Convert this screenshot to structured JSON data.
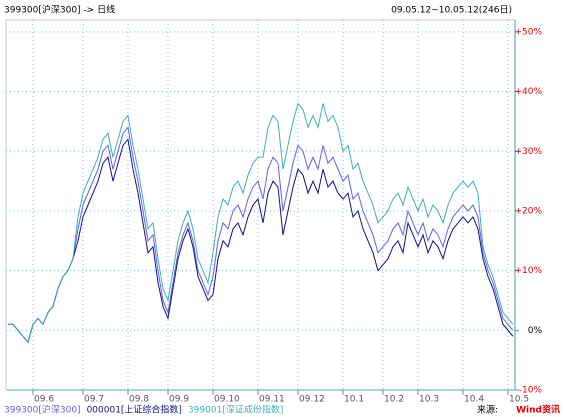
{
  "header": {
    "left": "399300[沪深300] -> 日线",
    "right": "09.05.12~10.05.12(246日)"
  },
  "footer": {
    "source": "来源:",
    "logo": "Wind资讯"
  },
  "chart_data": {
    "type": "line",
    "categories": [
      null,
      null,
      null,
      null,
      null,
      "09.6",
      null,
      null,
      null,
      null,
      null,
      null,
      null,
      null,
      null,
      "09.7",
      null,
      null,
      null,
      null,
      null,
      null,
      null,
      null,
      "09.8",
      null,
      null,
      null,
      null,
      null,
      null,
      null,
      "09.9",
      null,
      null,
      null,
      null,
      null,
      null,
      null,
      null,
      "09.10",
      null,
      null,
      null,
      null,
      null,
      null,
      null,
      null,
      "09.11",
      null,
      null,
      null,
      null,
      null,
      null,
      null,
      "09.12",
      null,
      null,
      null,
      null,
      null,
      null,
      null,
      null,
      "10.1",
      null,
      null,
      null,
      null,
      null,
      null,
      null,
      "10.2",
      null,
      null,
      null,
      null,
      null,
      null,
      "10.3",
      null,
      null,
      null,
      null,
      null,
      null,
      null,
      null,
      "10.4",
      null,
      null,
      null,
      null,
      null,
      null,
      null,
      null,
      "10.5",
      null
    ],
    "series": [
      {
        "name": "399300[沪深300]",
        "color": "#6060f0",
        "values": [
          1,
          1,
          0,
          -1,
          -2,
          1,
          2,
          1,
          3,
          4,
          7,
          9,
          10,
          12,
          17,
          21,
          23,
          25,
          27,
          30,
          31,
          27,
          30,
          33,
          34,
          29,
          25,
          20,
          15,
          16,
          10,
          5,
          3,
          8,
          13,
          16,
          18,
          15,
          10,
          8,
          6,
          9,
          15,
          18,
          17,
          20,
          21,
          19,
          22,
          24,
          25,
          22,
          27,
          29,
          28,
          20,
          24,
          28,
          31,
          30,
          27,
          29,
          27,
          31,
          28,
          29,
          27,
          25,
          26,
          22,
          23,
          20,
          18,
          16,
          13,
          14,
          15,
          17,
          18,
          16,
          20,
          18,
          16,
          18,
          15,
          17,
          16,
          14,
          17,
          19,
          20,
          21,
          20,
          21,
          19,
          13,
          10,
          8,
          5,
          2,
          1,
          0
        ]
      },
      {
        "name": "000001[上证综合指数]",
        "color": "#10108a",
        "values": [
          1,
          1,
          0,
          -1,
          -2,
          1,
          2,
          1,
          3,
          4,
          7,
          9,
          10,
          12,
          15,
          19,
          21,
          23,
          25,
          28,
          29,
          25,
          28,
          31,
          32,
          27,
          23,
          18,
          13,
          14,
          8,
          4,
          2,
          7,
          12,
          15,
          17,
          14,
          9,
          7,
          5,
          6,
          12,
          15,
          14,
          17,
          18,
          16,
          19,
          21,
          22,
          18,
          23,
          25,
          24,
          16,
          20,
          24,
          27,
          26,
          23,
          25,
          23,
          27,
          24,
          25,
          23,
          22,
          23,
          19,
          20,
          17,
          15,
          13,
          10,
          11,
          12,
          14,
          15,
          13,
          18,
          16,
          14,
          16,
          13,
          15,
          14,
          12,
          15,
          17,
          18,
          19,
          18,
          19,
          17,
          12,
          9,
          7,
          4,
          1,
          0,
          -1
        ]
      },
      {
        "name": "399001[深证成份指数]",
        "color": "#40b0b0",
        "values": [
          1,
          1,
          0,
          -1,
          -2,
          1,
          2,
          1,
          3,
          4,
          7,
          9,
          10,
          12,
          19,
          23,
          25,
          27,
          29,
          32,
          33,
          29,
          32,
          35,
          36,
          31,
          27,
          22,
          17,
          18,
          12,
          7,
          5,
          10,
          15,
          18,
          20,
          17,
          12,
          10,
          8,
          13,
          19,
          22,
          21,
          24,
          25,
          23,
          26,
          28,
          29,
          29,
          34,
          36,
          35,
          27,
          31,
          35,
          38,
          37,
          34,
          36,
          34,
          38,
          35,
          36,
          34,
          30,
          31,
          27,
          28,
          25,
          23,
          21,
          18,
          19,
          20,
          22,
          23,
          21,
          24,
          22,
          20,
          22,
          19,
          21,
          20,
          18,
          21,
          23,
          24,
          25,
          24,
          25,
          23,
          14,
          11,
          9,
          6,
          3,
          2,
          1
        ]
      }
    ],
    "ylim": [
      -10,
      52
    ],
    "yticks": [
      {
        "value": -10,
        "label": "-10%"
      },
      {
        "value": 0,
        "label": "0%"
      },
      {
        "value": 10,
        "label": "+10%"
      },
      {
        "value": 20,
        "label": "+20%"
      },
      {
        "value": 30,
        "label": "+30%"
      },
      {
        "value": 40,
        "label": "+40%"
      },
      {
        "value": 50,
        "label": "+50%"
      }
    ],
    "grid": true
  }
}
